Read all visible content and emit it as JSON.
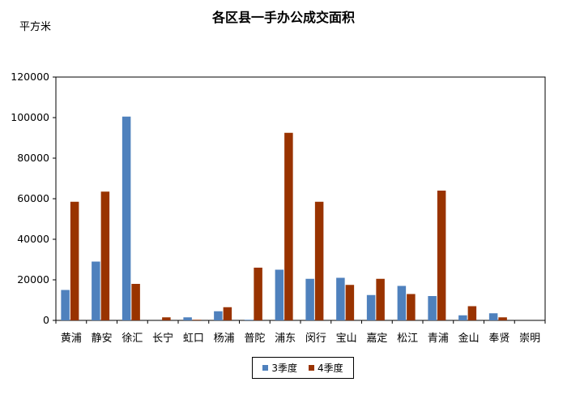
{
  "chart_data": {
    "type": "bar",
    "title": "各区县一手办公成交面积",
    "unit_label": "平方米",
    "categories": [
      "黄浦",
      "静安",
      "徐汇",
      "长宁",
      "虹口",
      "杨浦",
      "普陀",
      "浦东",
      "闵行",
      "宝山",
      "嘉定",
      "松江",
      "青浦",
      "金山",
      "奉贤",
      "崇明"
    ],
    "series": [
      {
        "name": "3季度",
        "color": "#4F81BD",
        "values": [
          15000,
          29000,
          100500,
          0,
          1500,
          4500,
          300,
          25000,
          20500,
          21000,
          12500,
          17000,
          12000,
          2500,
          3500,
          0
        ]
      },
      {
        "name": "4季度",
        "color": "#993300",
        "values": [
          58500,
          63500,
          18000,
          1500,
          300,
          6500,
          26000,
          92500,
          58500,
          17500,
          20500,
          13000,
          64000,
          7000,
          1500,
          0
        ]
      }
    ],
    "ylim": [
      0,
      120000
    ],
    "yticks": [
      "0",
      "20000",
      "40000",
      "60000",
      "80000",
      "100000",
      "120000"
    ],
    "grid": false,
    "legend_position": "bottom"
  }
}
